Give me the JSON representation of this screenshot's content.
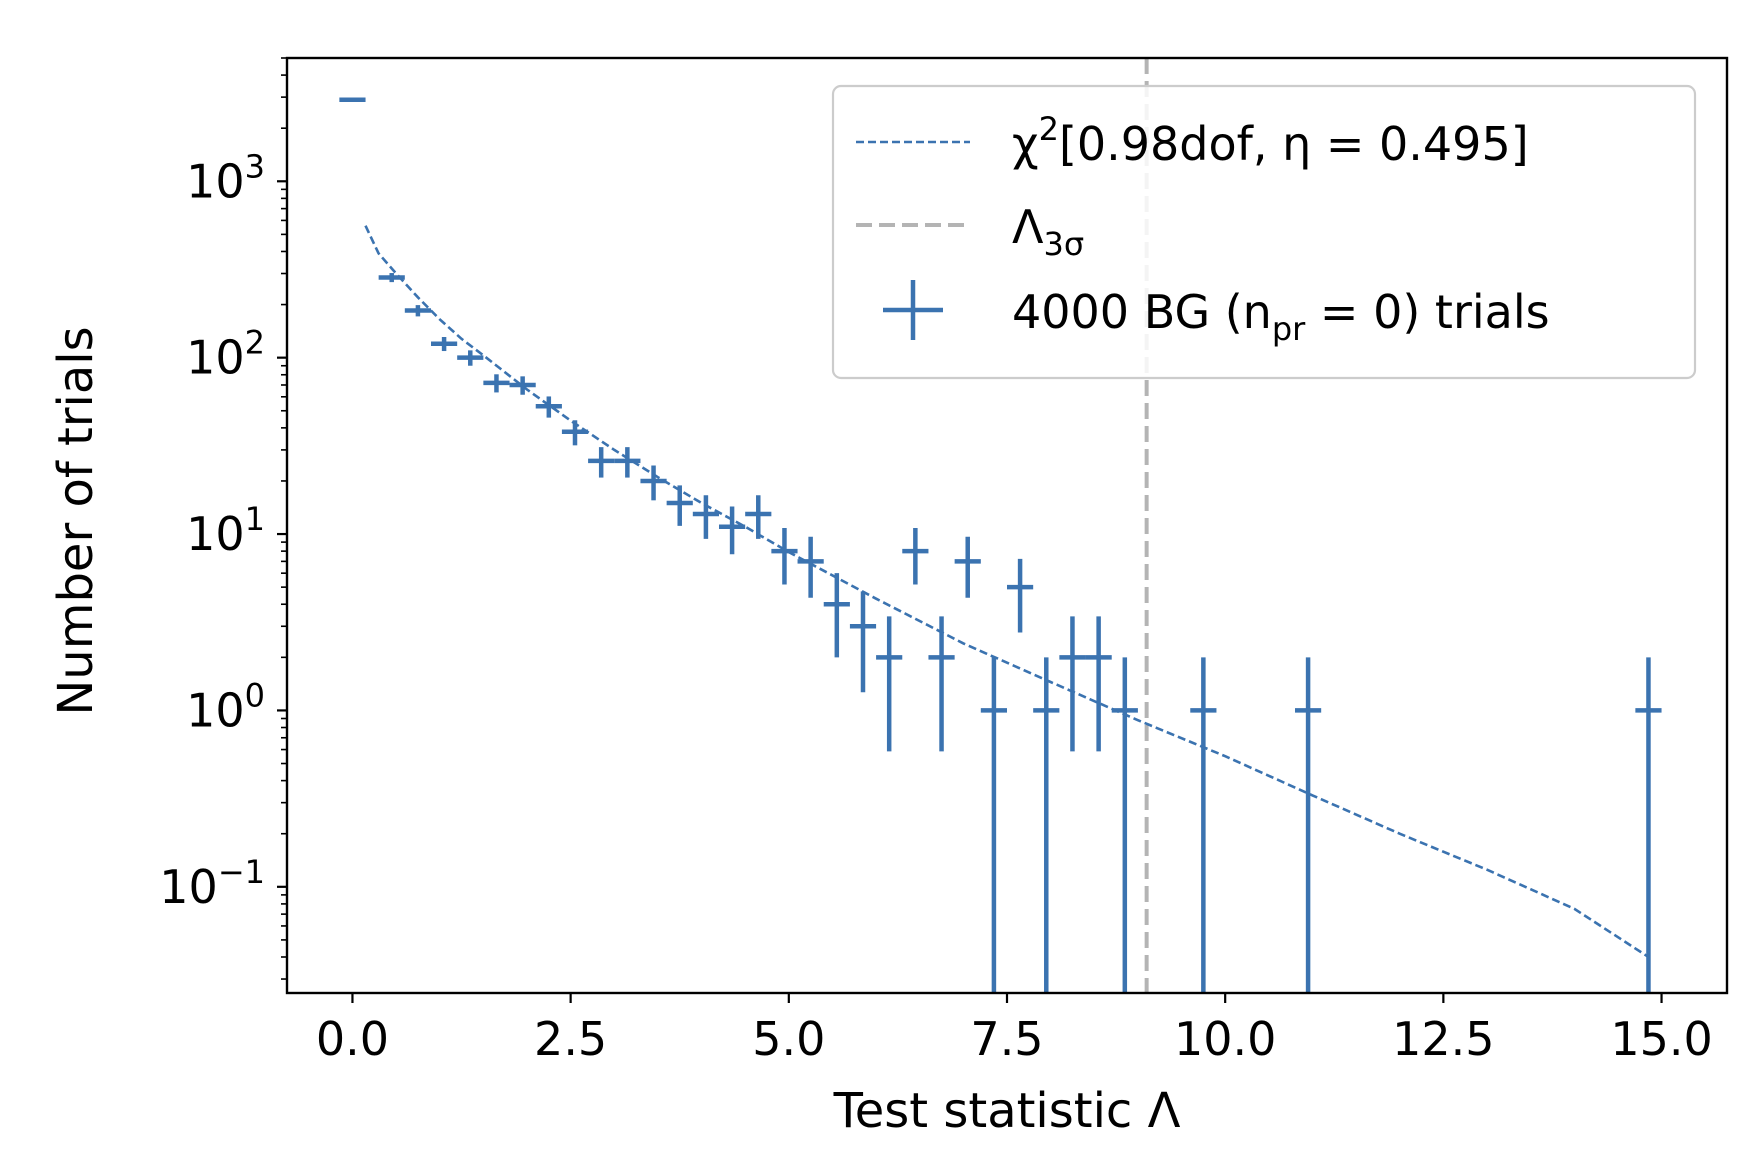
{
  "chart_data": {
    "type": "scatter",
    "xlabel": "Test statistic Λ",
    "ylabel": "Number of trials",
    "xlim": [
      -0.75,
      15.75
    ],
    "ylim": [
      0.025,
      5000
    ],
    "yscale": "log",
    "grid": false,
    "legend_position": "top-right",
    "x_ticks": [
      0.0,
      2.5,
      5.0,
      7.5,
      10.0,
      12.5,
      15.0
    ],
    "x_tick_labels": [
      "0.0",
      "2.5",
      "5.0",
      "7.5",
      "10.0",
      "12.5",
      "15.0"
    ],
    "y_ticks": [
      {
        "value": 1000,
        "base": "10",
        "exp": "3"
      },
      {
        "value": 100,
        "base": "10",
        "exp": "2"
      },
      {
        "value": 10,
        "base": "10",
        "exp": "1"
      },
      {
        "value": 1,
        "base": "10",
        "exp": "0"
      },
      {
        "value": 0.1,
        "base": "10",
        "exp": "−1"
      }
    ],
    "bin_half_width": 0.15,
    "series": [
      {
        "name": "4000 BG (n_pr = 0) trials",
        "kind": "errorbar",
        "color": "#3b73b0",
        "x": [
          0.0,
          0.45,
          0.75,
          1.05,
          1.35,
          1.65,
          1.95,
          2.25,
          2.55,
          2.85,
          3.15,
          3.45,
          3.75,
          4.05,
          4.35,
          4.65,
          4.95,
          5.25,
          5.55,
          5.85,
          6.15,
          6.45,
          6.75,
          7.05,
          7.35,
          7.65,
          7.95,
          8.25,
          8.55,
          8.85,
          9.75,
          10.95,
          14.85
        ],
        "y": [
          2900,
          285,
          185,
          120,
          100,
          72,
          70,
          53,
          38,
          26,
          26,
          20,
          15,
          13,
          11,
          13,
          8,
          7,
          4,
          3,
          2,
          8,
          2,
          7,
          1,
          5,
          1,
          2,
          2,
          1,
          1,
          1,
          1
        ]
      },
      {
        "name": "χ²[0.98dof, η = 0.495]",
        "kind": "line",
        "style": "dashed",
        "color": "#3b73b0",
        "x": [
          0.15,
          0.3,
          0.5,
          0.75,
          1.0,
          1.25,
          1.5,
          2.0,
          2.5,
          3.0,
          3.5,
          4.0,
          4.5,
          5.0,
          6.0,
          7.0,
          8.0,
          9.0,
          10.0,
          11.0,
          12.0,
          13.0,
          14.0,
          14.85
        ],
        "y": [
          560,
          390,
          300,
          220,
          165,
          128,
          103,
          66,
          44,
          30,
          21,
          15,
          11,
          7.9,
          4.3,
          2.4,
          1.45,
          0.88,
          0.55,
          0.33,
          0.2,
          0.125,
          0.075,
          0.04
        ]
      },
      {
        "name": "Λ_3σ",
        "kind": "vline",
        "style": "dashed",
        "color": "#b4b4b4",
        "x": 9.1
      }
    ],
    "legend": [
      {
        "text": "χ",
        "sup": "2",
        "rest": "[0.98dof,  η = 0.495]"
      },
      {
        "text": "Λ",
        "sub": "3σ"
      },
      {
        "text": "4000 BG (n",
        "sub": "pr",
        "rest": " = 0) trials"
      }
    ]
  }
}
